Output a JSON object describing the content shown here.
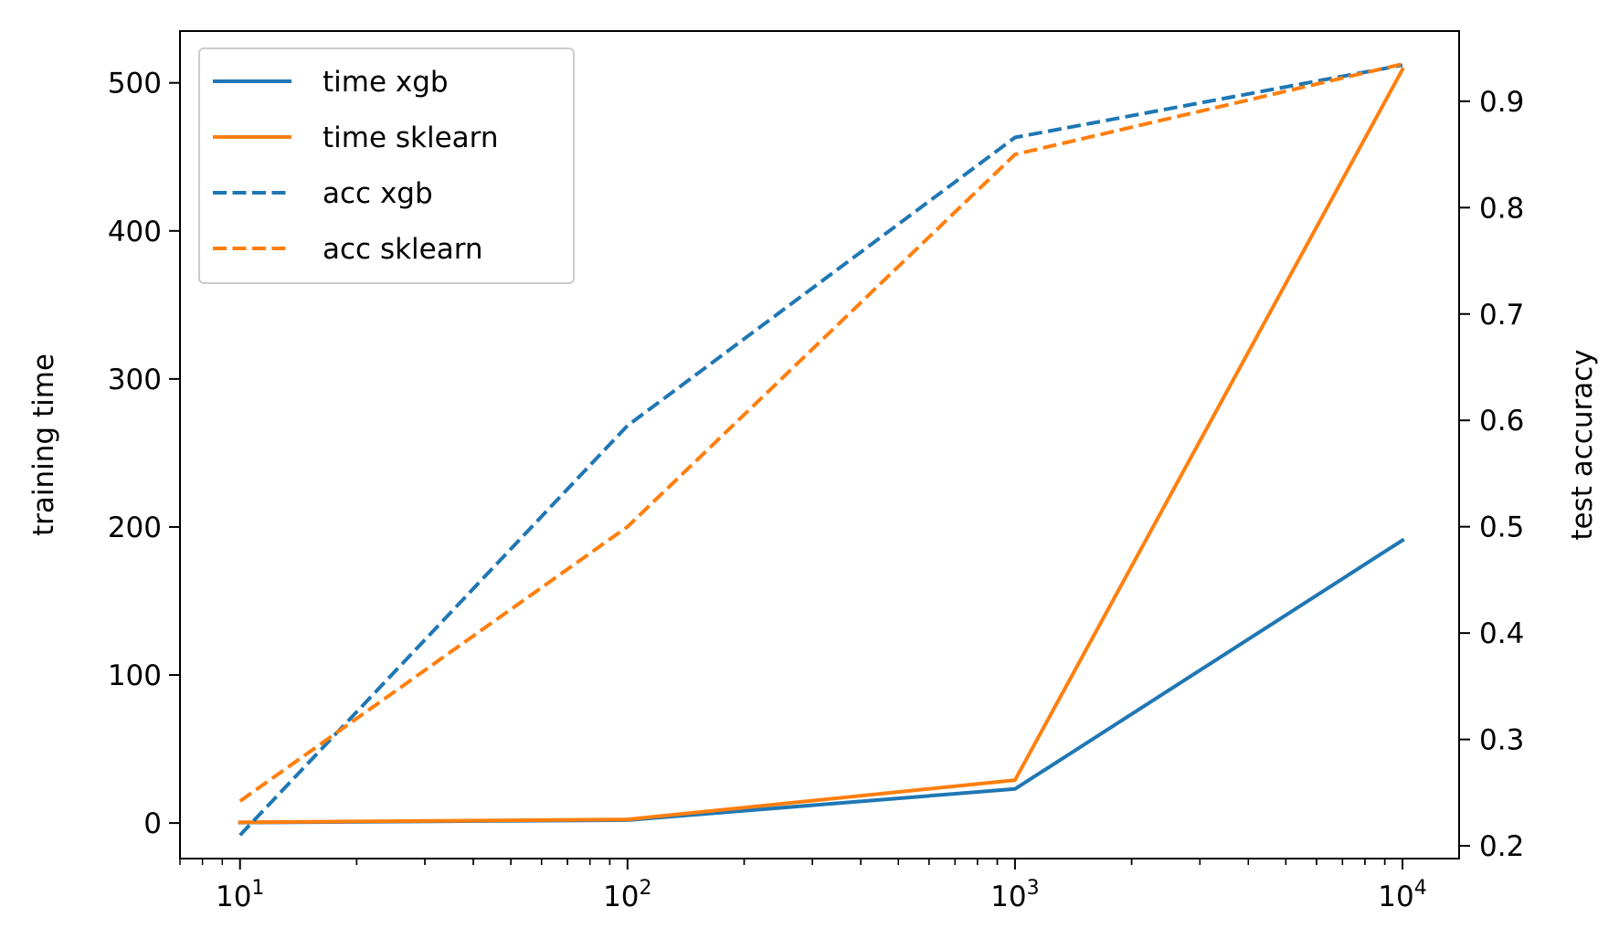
{
  "chart_data": {
    "type": "line",
    "x": [
      10,
      100,
      1000,
      10000
    ],
    "x_scale": "log",
    "x_ticks": [
      {
        "value": 10,
        "base": "10",
        "exp": "1"
      },
      {
        "value": 100,
        "base": "10",
        "exp": "2"
      },
      {
        "value": 1000,
        "base": "10",
        "exp": "3"
      },
      {
        "value": 10000,
        "base": "10",
        "exp": "4"
      }
    ],
    "xlim": [
      7.0,
      14000
    ],
    "ylabel_left": "training time",
    "ylabel_right": "test accuracy",
    "ylim_left": [
      -24,
      535
    ],
    "ylim_right": [
      0.188,
      0.966
    ],
    "yticks_left": [
      "0",
      "100",
      "200",
      "300",
      "400",
      "500"
    ],
    "yticks_right": [
      "0.2",
      "0.3",
      "0.4",
      "0.5",
      "0.6",
      "0.7",
      "0.8",
      "0.9"
    ],
    "series": [
      {
        "name": "time xgb",
        "axis": "left",
        "style": "solid",
        "color": "#1f77b4",
        "values": [
          0.3,
          2,
          23,
          191
        ]
      },
      {
        "name": "time sklearn",
        "axis": "left",
        "style": "solid",
        "color": "#ff7f0e",
        "values": [
          0.5,
          2.5,
          29,
          509
        ]
      },
      {
        "name": "acc xgb",
        "axis": "right",
        "style": "dashed",
        "color": "#1f77b4",
        "values": [
          0.21,
          0.595,
          0.866,
          0.934
        ]
      },
      {
        "name": "acc sklearn",
        "axis": "right",
        "style": "dashed",
        "color": "#ff7f0e",
        "values": [
          0.242,
          0.5,
          0.85,
          0.935
        ]
      }
    ],
    "legend": "upper-left",
    "grid": false
  }
}
